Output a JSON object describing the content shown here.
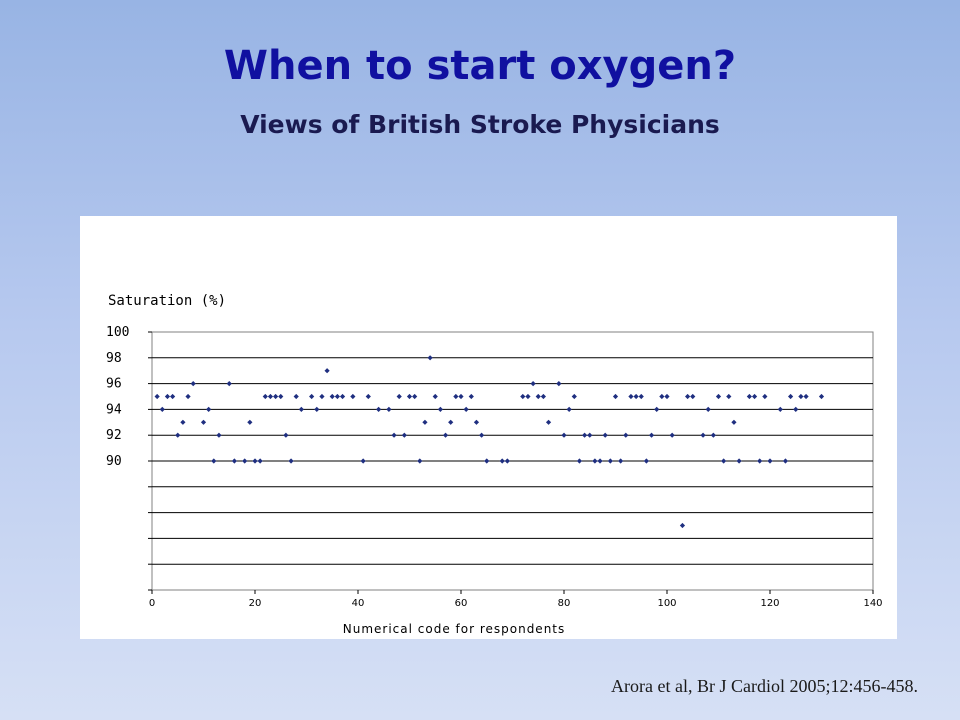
{
  "slide": {
    "title": "When to start oxygen?",
    "subtitle": "Views of British Stroke Physicians",
    "citation": "Arora et al, Br J Cardiol 2005;12:456-458."
  },
  "chart_data": {
    "type": "scatter",
    "ylabel": "Saturation (%)",
    "xlabel": "Numerical code for respondents",
    "xlim": [
      0,
      140
    ],
    "ylim": [
      80,
      100
    ],
    "x_ticks": [
      0,
      20,
      40,
      60,
      80,
      100,
      120,
      140
    ],
    "y_tick_labels": [
      {
        "value": 100,
        "label": "100"
      },
      {
        "value": 98,
        "label": "98"
      },
      {
        "value": 96,
        "label": "96"
      },
      {
        "value": 94,
        "label": "94"
      },
      {
        "value": 92,
        "label": "92"
      },
      {
        "value": 90,
        "label": "90"
      }
    ],
    "gridlines_y": [
      100,
      98,
      96,
      94,
      92,
      90,
      88,
      86,
      84,
      82
    ],
    "grid": true,
    "marker_color": "#1f2f80",
    "series": [
      {
        "points": [
          [
            1,
            95
          ],
          [
            2,
            94
          ],
          [
            3,
            95
          ],
          [
            4,
            95
          ],
          [
            5,
            92
          ],
          [
            6,
            93
          ],
          [
            7,
            95
          ],
          [
            8,
            96
          ],
          [
            10,
            93
          ],
          [
            11,
            94
          ],
          [
            12,
            90
          ],
          [
            13,
            92
          ],
          [
            15,
            96
          ],
          [
            16,
            90
          ],
          [
            18,
            90
          ],
          [
            19,
            93
          ],
          [
            20,
            90
          ],
          [
            21,
            90
          ],
          [
            22,
            95
          ],
          [
            23,
            95
          ],
          [
            24,
            95
          ],
          [
            25,
            95
          ],
          [
            26,
            92
          ],
          [
            27,
            90
          ],
          [
            28,
            95
          ],
          [
            29,
            94
          ],
          [
            31,
            95
          ],
          [
            32,
            94
          ],
          [
            33,
            95
          ],
          [
            34,
            97
          ],
          [
            35,
            95
          ],
          [
            36,
            95
          ],
          [
            37,
            95
          ],
          [
            39,
            95
          ],
          [
            41,
            90
          ],
          [
            42,
            95
          ],
          [
            44,
            94
          ],
          [
            46,
            94
          ],
          [
            47,
            92
          ],
          [
            48,
            95
          ],
          [
            49,
            92
          ],
          [
            50,
            95
          ],
          [
            51,
            95
          ],
          [
            52,
            90
          ],
          [
            53,
            93
          ],
          [
            54,
            98
          ],
          [
            55,
            95
          ],
          [
            56,
            94
          ],
          [
            57,
            92
          ],
          [
            58,
            93
          ],
          [
            59,
            95
          ],
          [
            60,
            95
          ],
          [
            61,
            94
          ],
          [
            62,
            95
          ],
          [
            63,
            93
          ],
          [
            64,
            92
          ],
          [
            65,
            90
          ],
          [
            68,
            90
          ],
          [
            69,
            90
          ],
          [
            72,
            95
          ],
          [
            73,
            95
          ],
          [
            74,
            96
          ],
          [
            75,
            95
          ],
          [
            76,
            95
          ],
          [
            77,
            93
          ],
          [
            79,
            96
          ],
          [
            80,
            92
          ],
          [
            81,
            94
          ],
          [
            82,
            95
          ],
          [
            83,
            90
          ],
          [
            84,
            92
          ],
          [
            85,
            92
          ],
          [
            86,
            90
          ],
          [
            87,
            90
          ],
          [
            88,
            92
          ],
          [
            89,
            90
          ],
          [
            90,
            95
          ],
          [
            91,
            90
          ],
          [
            92,
            92
          ],
          [
            93,
            95
          ],
          [
            94,
            95
          ],
          [
            95,
            95
          ],
          [
            96,
            90
          ],
          [
            97,
            92
          ],
          [
            98,
            94
          ],
          [
            99,
            95
          ],
          [
            100,
            95
          ],
          [
            101,
            92
          ],
          [
            103,
            85
          ],
          [
            104,
            95
          ],
          [
            105,
            95
          ],
          [
            107,
            92
          ],
          [
            108,
            94
          ],
          [
            109,
            92
          ],
          [
            110,
            95
          ],
          [
            111,
            90
          ],
          [
            112,
            95
          ],
          [
            113,
            93
          ],
          [
            114,
            90
          ],
          [
            116,
            95
          ],
          [
            117,
            95
          ],
          [
            118,
            90
          ],
          [
            119,
            95
          ],
          [
            120,
            90
          ],
          [
            122,
            94
          ],
          [
            123,
            90
          ],
          [
            124,
            95
          ],
          [
            125,
            94
          ],
          [
            126,
            95
          ],
          [
            127,
            95
          ],
          [
            130,
            95
          ]
        ]
      }
    ]
  }
}
